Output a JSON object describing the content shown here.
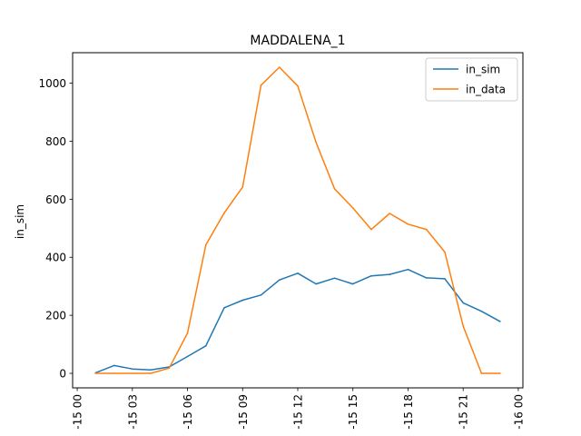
{
  "chart_data": {
    "type": "line",
    "title": "MADDALENA_1",
    "xlabel": "",
    "ylabel": "in_sim",
    "grid": false,
    "legend_placement": "top-right",
    "ylim": [
      -50,
      1105
    ],
    "xlim": [
      "-15 00",
      "-16 00"
    ],
    "y_ticks": [
      0,
      200,
      400,
      600,
      800,
      1000
    ],
    "x_tick_labels": [
      "-15 00",
      "-15 03",
      "-15 06",
      "-15 09",
      "-15 12",
      "-15 15",
      "-15 18",
      "-15 21",
      "-16 00"
    ],
    "x_tick_hours": [
      0,
      3,
      6,
      9,
      12,
      15,
      18,
      21,
      24
    ],
    "x_hours": [
      1,
      2,
      3,
      4,
      5,
      6,
      7,
      8,
      9,
      10,
      11,
      12,
      13,
      14,
      15,
      16,
      17,
      18,
      19,
      20,
      21,
      22,
      23
    ],
    "series": [
      {
        "name": "in_sim",
        "color": "#1f77b4",
        "values": [
          2,
          27,
          15,
          12,
          22,
          58,
          95,
          226,
          252,
          270,
          322,
          345,
          308,
          328,
          308,
          336,
          341,
          358,
          329,
          326,
          243,
          214,
          179
        ]
      },
      {
        "name": "in_data",
        "color": "#ff7f0e",
        "values": [
          0,
          0,
          0,
          0,
          18,
          138,
          443,
          553,
          642,
          993,
          1055,
          990,
          795,
          636,
          570,
          496,
          551,
          514,
          496,
          418,
          163,
          0,
          0
        ]
      }
    ]
  }
}
